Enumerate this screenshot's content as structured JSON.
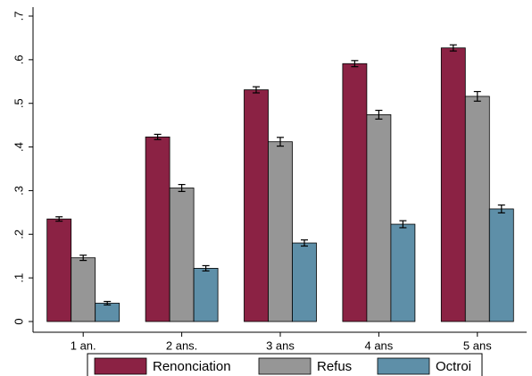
{
  "chart_data": {
    "type": "bar",
    "categories": [
      "1 an.",
      "2 ans.",
      "3 ans",
      "4 ans",
      "5 ans"
    ],
    "series": [
      {
        "name": "Renonciation",
        "color": "#8b2244",
        "values": [
          0.235,
          0.423,
          0.531,
          0.591,
          0.627
        ],
        "err": [
          0.005,
          0.006,
          0.007,
          0.007,
          0.007
        ]
      },
      {
        "name": "Refus",
        "color": "#969696",
        "values": [
          0.146,
          0.306,
          0.412,
          0.474,
          0.516
        ],
        "err": [
          0.006,
          0.008,
          0.01,
          0.01,
          0.011
        ]
      },
      {
        "name": "Octroi",
        "color": "#5e8fa8",
        "values": [
          0.042,
          0.122,
          0.18,
          0.223,
          0.258
        ],
        "err": [
          0.004,
          0.006,
          0.007,
          0.008,
          0.009
        ]
      }
    ],
    "yticks": [
      0,
      0.1,
      0.2,
      0.3,
      0.4,
      0.5,
      0.6,
      0.7
    ],
    "ytick_labels": [
      "0",
      ".1",
      ".2",
      ".3",
      ".4",
      ".5",
      ".6",
      ".7"
    ],
    "ylim": [
      0,
      0.7
    ],
    "legend_position": "bottom",
    "grid": false
  }
}
